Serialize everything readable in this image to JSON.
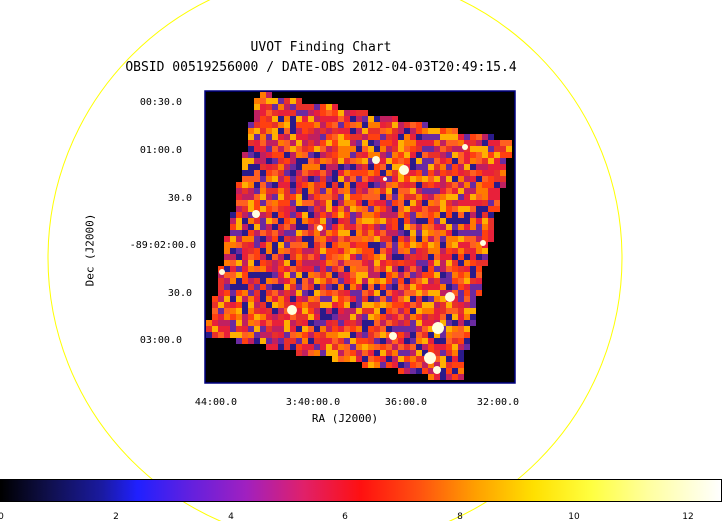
{
  "chart": {
    "title_line1": "UVOT Finding Chart",
    "title_line2": "OBSID 00519256000 / DATE-OBS 2012-04-03T20:49:15.4",
    "x_axis_title": "RA (J2000)",
    "y_axis_title": "Dec (J2000)",
    "y_ticks": [
      "00:30.0",
      "01:00.0",
      "30.0",
      "-89:02:00.0",
      "30.0",
      "03:00.0"
    ],
    "x_ticks": [
      "44:00.0",
      "3:40:00.0",
      "36:00.0",
      "32:00.0"
    ],
    "colorbar_ticks": [
      "0",
      "2",
      "4",
      "6",
      "8",
      "10",
      "12"
    ]
  },
  "colors": {
    "circle": "#ffff00",
    "frame": "#000080",
    "background": "#000000"
  }
}
